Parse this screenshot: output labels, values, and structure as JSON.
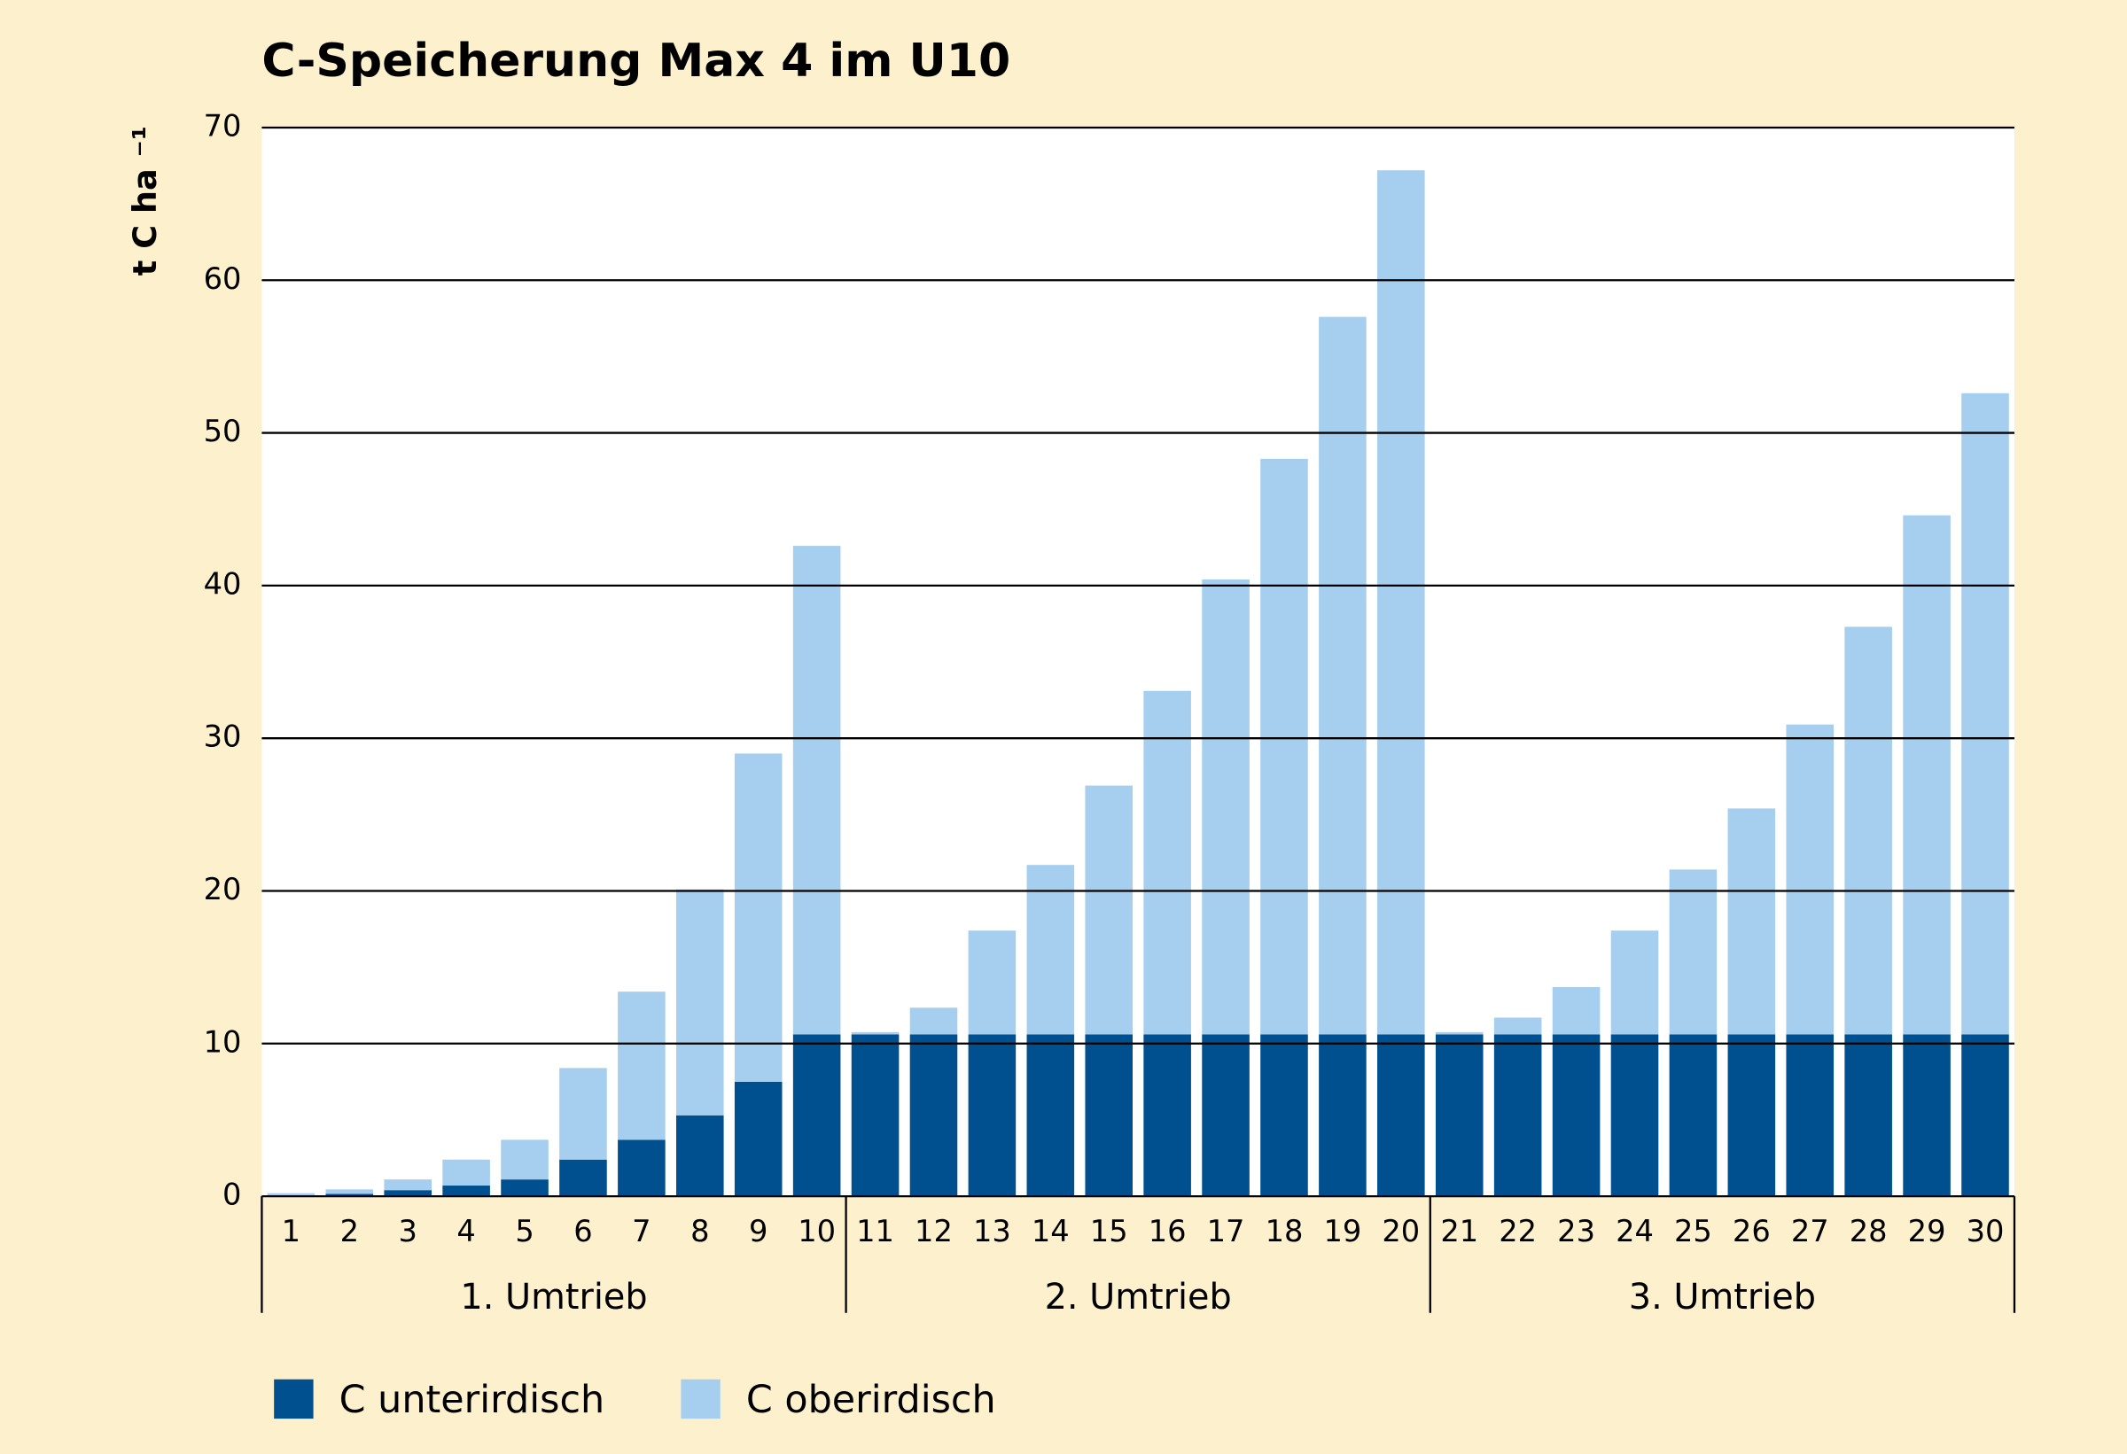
{
  "chart_data": {
    "type": "stacked_bar",
    "title": "C-Speicherung Max 4 im U10",
    "y_label": "t C ha ⁻¹",
    "categories": [
      "1",
      "2",
      "3",
      "4",
      "5",
      "6",
      "7",
      "8",
      "9",
      "10",
      "11",
      "12",
      "13",
      "14",
      "15",
      "16",
      "17",
      "18",
      "19",
      "20",
      "21",
      "22",
      "23",
      "24",
      "25",
      "26",
      "27",
      "28",
      "29",
      "30"
    ],
    "group_labels": [
      "1. Umtrieb",
      "2. Umtrieb",
      "3. Umtrieb"
    ],
    "series": [
      {
        "name": "C unterirdisch",
        "color": "#00508f",
        "values": [
          0.05,
          0.15,
          0.4,
          0.7,
          1.1,
          2.4,
          3.7,
          5.3,
          7.5,
          10.6,
          10.6,
          10.6,
          10.6,
          10.6,
          10.6,
          10.6,
          10.6,
          10.6,
          10.6,
          10.6,
          10.6,
          10.6,
          10.6,
          10.6,
          10.6,
          10.6,
          10.6,
          10.6,
          10.6,
          10.6
        ]
      },
      {
        "name": "C oberirdisch",
        "color": "#a6cfef",
        "values": [
          0.15,
          0.3,
          0.7,
          1.7,
          2.6,
          6.0,
          9.7,
          14.8,
          21.5,
          32.0,
          0.15,
          1.75,
          6.8,
          11.1,
          16.3,
          22.5,
          29.8,
          37.7,
          47.0,
          56.6,
          0.15,
          1.1,
          3.1,
          6.8,
          10.8,
          14.8,
          20.3,
          26.7,
          34.0,
          42.0
        ]
      }
    ],
    "ylim": [
      0,
      70
    ],
    "yticks": [
      0,
      10,
      20,
      30,
      40,
      50,
      60,
      70
    ],
    "grid": true
  }
}
